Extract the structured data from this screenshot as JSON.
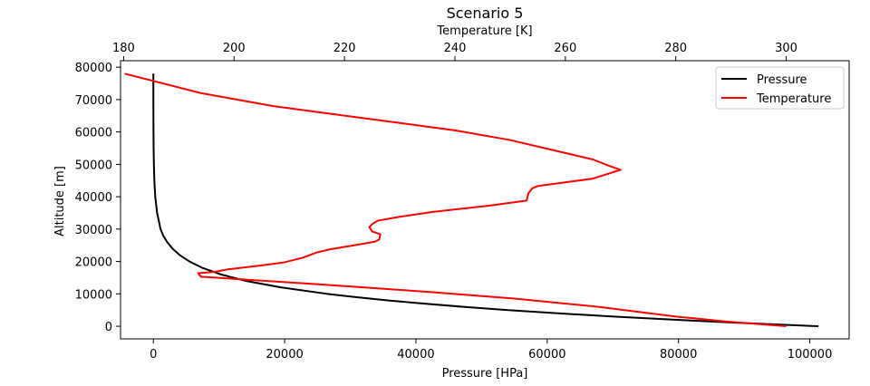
{
  "chart_data": {
    "type": "line",
    "title": "Scenario 5",
    "xlabel": "Pressure [HPa]",
    "ylabel": "Altitude [m]",
    "x2label": "Temperature [K]",
    "xlim": [
      -5000,
      106000
    ],
    "x2lim": [
      179.44,
      311.4
    ],
    "ylim": [
      -3900,
      82000
    ],
    "xticks": [
      0,
      20000,
      40000,
      60000,
      80000,
      100000
    ],
    "xtick_labels": [
      "0",
      "20000",
      "40000",
      "60000",
      "80000",
      "100000"
    ],
    "x2ticks": [
      180,
      200,
      220,
      240,
      260,
      280,
      300
    ],
    "x2tick_labels": [
      "180",
      "200",
      "220",
      "240",
      "260",
      "280",
      "300"
    ],
    "yticks": [
      0,
      10000,
      20000,
      30000,
      40000,
      50000,
      60000,
      70000,
      80000
    ],
    "ytick_labels": [
      "0",
      "10000",
      "20000",
      "30000",
      "40000",
      "50000",
      "60000",
      "70000",
      "80000"
    ],
    "grid": false,
    "legend_position": "top-right",
    "series": [
      {
        "name": "Pressure",
        "color": "#000000",
        "axis": "bottom",
        "points": [
          [
            101325,
            0
          ],
          [
            89870,
            1000
          ],
          [
            79500,
            2000
          ],
          [
            70120,
            3000
          ],
          [
            61640,
            4000
          ],
          [
            54050,
            5000
          ],
          [
            47220,
            6000
          ],
          [
            41100,
            7000
          ],
          [
            35650,
            8000
          ],
          [
            30800,
            9000
          ],
          [
            26500,
            10000
          ],
          [
            19400,
            12000
          ],
          [
            14100,
            14000
          ],
          [
            10300,
            16000
          ],
          [
            7500,
            18000
          ],
          [
            5500,
            20000
          ],
          [
            4000,
            22000
          ],
          [
            2900,
            24000
          ],
          [
            2100,
            26000
          ],
          [
            1500,
            28000
          ],
          [
            1100,
            30000
          ],
          [
            570,
            35000
          ],
          [
            290,
            40000
          ],
          [
            150,
            45000
          ],
          [
            80,
            50000
          ],
          [
            40,
            55000
          ],
          [
            22,
            60000
          ],
          [
            10,
            65000
          ],
          [
            5,
            70000
          ],
          [
            2,
            75000
          ],
          [
            1,
            78000
          ]
        ]
      },
      {
        "name": "Temperature",
        "color": "#ff0000",
        "axis": "top",
        "points": [
          [
            300.0,
            0
          ],
          [
            289.0,
            1500
          ],
          [
            280.0,
            3000
          ],
          [
            273.0,
            4500
          ],
          [
            266.0,
            6000
          ],
          [
            251.0,
            8500
          ],
          [
            236.0,
            10500
          ],
          [
            215.0,
            13000
          ],
          [
            194.0,
            15300
          ],
          [
            193.5,
            16400
          ],
          [
            196.5,
            16800
          ],
          [
            199.0,
            17600
          ],
          [
            205.0,
            18800
          ],
          [
            209.0,
            19700
          ],
          [
            212.5,
            21200
          ],
          [
            215.0,
            22800
          ],
          [
            217.5,
            23800
          ],
          [
            220.0,
            24500
          ],
          [
            225.5,
            26100
          ],
          [
            226.3,
            26800
          ],
          [
            226.5,
            28400
          ],
          [
            225.0,
            29300
          ],
          [
            224.5,
            30600
          ],
          [
            225.0,
            31500
          ],
          [
            226.0,
            32600
          ],
          [
            230.0,
            33800
          ],
          [
            236.0,
            35300
          ],
          [
            246.0,
            37200
          ],
          [
            253.0,
            38800
          ],
          [
            253.3,
            41000
          ],
          [
            254.0,
            42600
          ],
          [
            255.0,
            43300
          ],
          [
            265.0,
            45600
          ],
          [
            270.0,
            48300
          ],
          [
            268.0,
            49500
          ],
          [
            265.0,
            51500
          ],
          [
            258.0,
            54300
          ],
          [
            250.0,
            57500
          ],
          [
            240.0,
            60500
          ],
          [
            229.0,
            63000
          ],
          [
            218.0,
            65500
          ],
          [
            207.0,
            68000
          ],
          [
            194.0,
            72000
          ],
          [
            180.2,
            78000
          ]
        ]
      }
    ]
  }
}
